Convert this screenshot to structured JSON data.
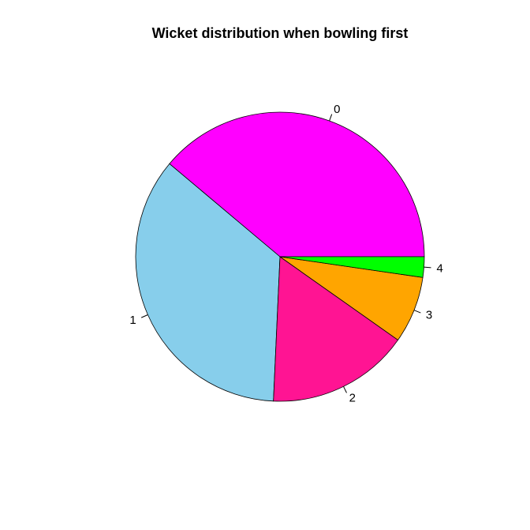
{
  "chart_data": {
    "type": "pie",
    "title": "Wicket distribution when bowling first",
    "direction": "counterclockwise",
    "start": "3 o'clock",
    "categories": [
      "0",
      "1",
      "2",
      "3",
      "4"
    ],
    "values": [
      39,
      35.5,
      16,
      7.5,
      2.3
    ],
    "colors": [
      "#ff00ff",
      "#87ceeb",
      "#ff1493",
      "#ffa500",
      "#00ff00"
    ],
    "legend": "none"
  }
}
